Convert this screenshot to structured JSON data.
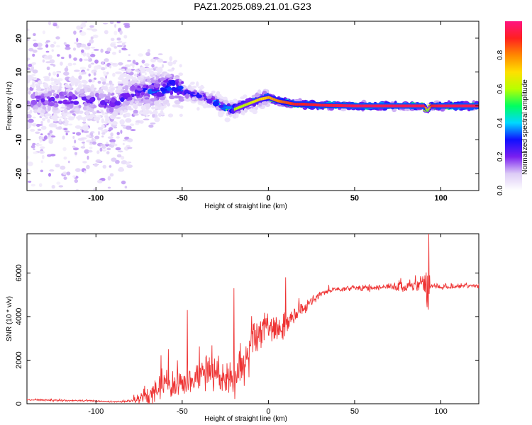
{
  "title": "PAZ1.2025.089.21.01.G23",
  "colors": {
    "line": "#ee3333",
    "frame": "#000000",
    "colormap": [
      "#ffffff",
      "#ddccf6",
      "#7a1ff0",
      "#1010ff",
      "#00d8ff",
      "#00ff60",
      "#b8ff00",
      "#ffe000",
      "#ff8800",
      "#ff2020",
      "#ff1480"
    ]
  },
  "chart_data": [
    {
      "type": "heatmap",
      "xlabel": "Height of straight line (km)",
      "ylabel": "Frequency (Hz)",
      "xlim": [
        -140,
        122
      ],
      "ylim": [
        -25,
        25
      ],
      "xticks": [
        -100,
        -50,
        0,
        50,
        100
      ],
      "yticks": [
        -20,
        -10,
        0,
        10,
        20
      ],
      "colorbar": {
        "label": "Normalized spectral amplitude",
        "range": [
          0,
          1
        ],
        "ticks": [
          0.0,
          0.2,
          0.4,
          0.6,
          0.8
        ]
      },
      "ridge": {
        "x": [
          -140,
          -120,
          -100,
          -90,
          -80,
          -70,
          -60,
          -55,
          -50,
          -45,
          -40,
          -35,
          -30,
          -25,
          -20,
          -15,
          -10,
          -5,
          0,
          5,
          10,
          15,
          20,
          30,
          50,
          70,
          90,
          92,
          94,
          100,
          122
        ],
        "y": [
          1.5,
          2.0,
          1.5,
          0.5,
          3.5,
          4.5,
          5.0,
          6.0,
          4.5,
          3.5,
          3.0,
          2.0,
          1.0,
          -0.5,
          -1.0,
          0.0,
          1.0,
          2.0,
          2.5,
          1.5,
          1.0,
          0.5,
          0.5,
          0.2,
          0.0,
          0.0,
          0.0,
          -1.5,
          0.0,
          0.0,
          0.0
        ],
        "amplitude": [
          0.25,
          0.3,
          0.3,
          0.3,
          0.3,
          0.4,
          0.45,
          0.45,
          0.4,
          0.4,
          0.35,
          0.4,
          0.5,
          0.55,
          0.6,
          0.6,
          0.65,
          0.7,
          0.75,
          0.8,
          0.85,
          0.9,
          0.9,
          0.92,
          0.95,
          0.95,
          0.95,
          0.5,
          0.9,
          0.95,
          0.95
        ]
      },
      "spread_hz": [
        {
          "from": -140,
          "to": -80,
          "value": 25
        },
        {
          "from": -80,
          "to": -50,
          "value": 8
        },
        {
          "from": -50,
          "to": 0,
          "value": 3
        },
        {
          "from": 0,
          "to": 122,
          "value": 1
        }
      ]
    },
    {
      "type": "line",
      "xlabel": "Height of straight line (km)",
      "ylabel": "SNR (10 * v/v)",
      "xlim": [
        -140,
        122
      ],
      "ylim": [
        0,
        7800
      ],
      "xticks": [
        -100,
        -50,
        0,
        50,
        100
      ],
      "yticks": [
        0,
        2000,
        4000,
        6000
      ],
      "series": [
        {
          "x": [
            -140,
            -120,
            -100,
            -90,
            -85,
            -80,
            -75,
            -70,
            -65,
            -62,
            -60,
            -55,
            -50,
            -48,
            -45,
            -40,
            -35,
            -30,
            -25,
            -20,
            -15,
            -12,
            -10,
            -5,
            0,
            5,
            10,
            15,
            20,
            25,
            30,
            35,
            40,
            50,
            60,
            70,
            80,
            85,
            88,
            90,
            92,
            93,
            94,
            96,
            100,
            110,
            122
          ],
          "y": [
            180,
            150,
            130,
            100,
            100,
            150,
            250,
            400,
            700,
            1000,
            900,
            700,
            1200,
            1100,
            1000,
            1300,
            1500,
            1200,
            1100,
            1000,
            1700,
            2300,
            3000,
            3400,
            3600,
            3400,
            3600,
            4000,
            4400,
            4700,
            5000,
            5200,
            5250,
            5300,
            5300,
            5350,
            5400,
            5450,
            5500,
            5600,
            5300,
            5200,
            5400,
            5400,
            5350,
            5400,
            5450
          ],
          "noise": [
            50,
            50,
            40,
            40,
            40,
            80,
            300,
            600,
            800,
            800,
            700,
            700,
            900,
            900,
            700,
            900,
            1100,
            900,
            800,
            900,
            1300,
            1400,
            1300,
            1000,
            900,
            800,
            700,
            500,
            350,
            250,
            200,
            150,
            150,
            150,
            170,
            220,
            300,
            450,
            700,
            900,
            1200,
            1000,
            250,
            150,
            130,
            130,
            130
          ],
          "spikes": [
            {
              "x": -58,
              "y": 2500
            },
            {
              "x": -47,
              "y": 4300
            },
            {
              "x": -20,
              "y": 5300
            },
            {
              "x": 10,
              "y": 5800
            },
            {
              "x": 93,
              "y": 7900
            }
          ]
        }
      ]
    }
  ]
}
